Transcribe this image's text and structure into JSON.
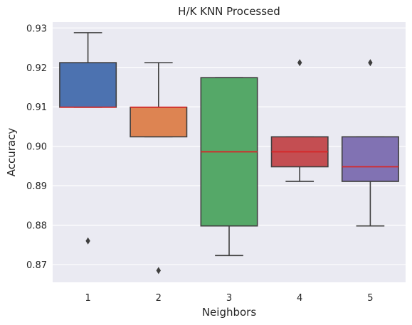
{
  "chart_data": {
    "type": "box",
    "title": "H/K KNN Processed",
    "xlabel": "Neighbors",
    "ylabel": "Accuracy",
    "ylim": [
      0.8655,
      0.9315
    ],
    "y_ticks": [
      "0.87",
      "0.88",
      "0.89",
      "0.90",
      "0.91",
      "0.92",
      "0.93"
    ],
    "grid": true,
    "categories": [
      "1",
      "2",
      "3",
      "4",
      "5"
    ],
    "boxes": [
      {
        "category": "1",
        "color": "#4c72b0",
        "whisker_low": 0.9099,
        "q1": 0.9099,
        "median": 0.9099,
        "q3": 0.9212,
        "whisker_high": 0.9288,
        "outliers": [
          0.876
        ]
      },
      {
        "category": "2",
        "color": "#dd8452",
        "whisker_low": 0.9024,
        "q1": 0.9024,
        "median": 0.9099,
        "q3": 0.9099,
        "whisker_high": 0.9212,
        "outliers": [
          0.8685
        ]
      },
      {
        "category": "3",
        "color": "#55a868",
        "whisker_low": 0.8723,
        "q1": 0.8798,
        "median": 0.8986,
        "q3": 0.9174,
        "whisker_high": 0.9174,
        "outliers": []
      },
      {
        "category": "4",
        "color": "#c44e52",
        "whisker_low": 0.8911,
        "q1": 0.8948,
        "median": 0.8986,
        "q3": 0.9024,
        "whisker_high": 0.9024,
        "outliers": [
          0.9212
        ]
      },
      {
        "category": "5",
        "color": "#8172b3",
        "whisker_low": 0.8798,
        "q1": 0.8911,
        "median": 0.8948,
        "q3": 0.9024,
        "whisker_high": 0.9024,
        "outliers": [
          0.9212
        ]
      }
    ],
    "median_color": "#d62728",
    "line_color": "#3f3f3f",
    "background_color": "#eaeaf2"
  }
}
